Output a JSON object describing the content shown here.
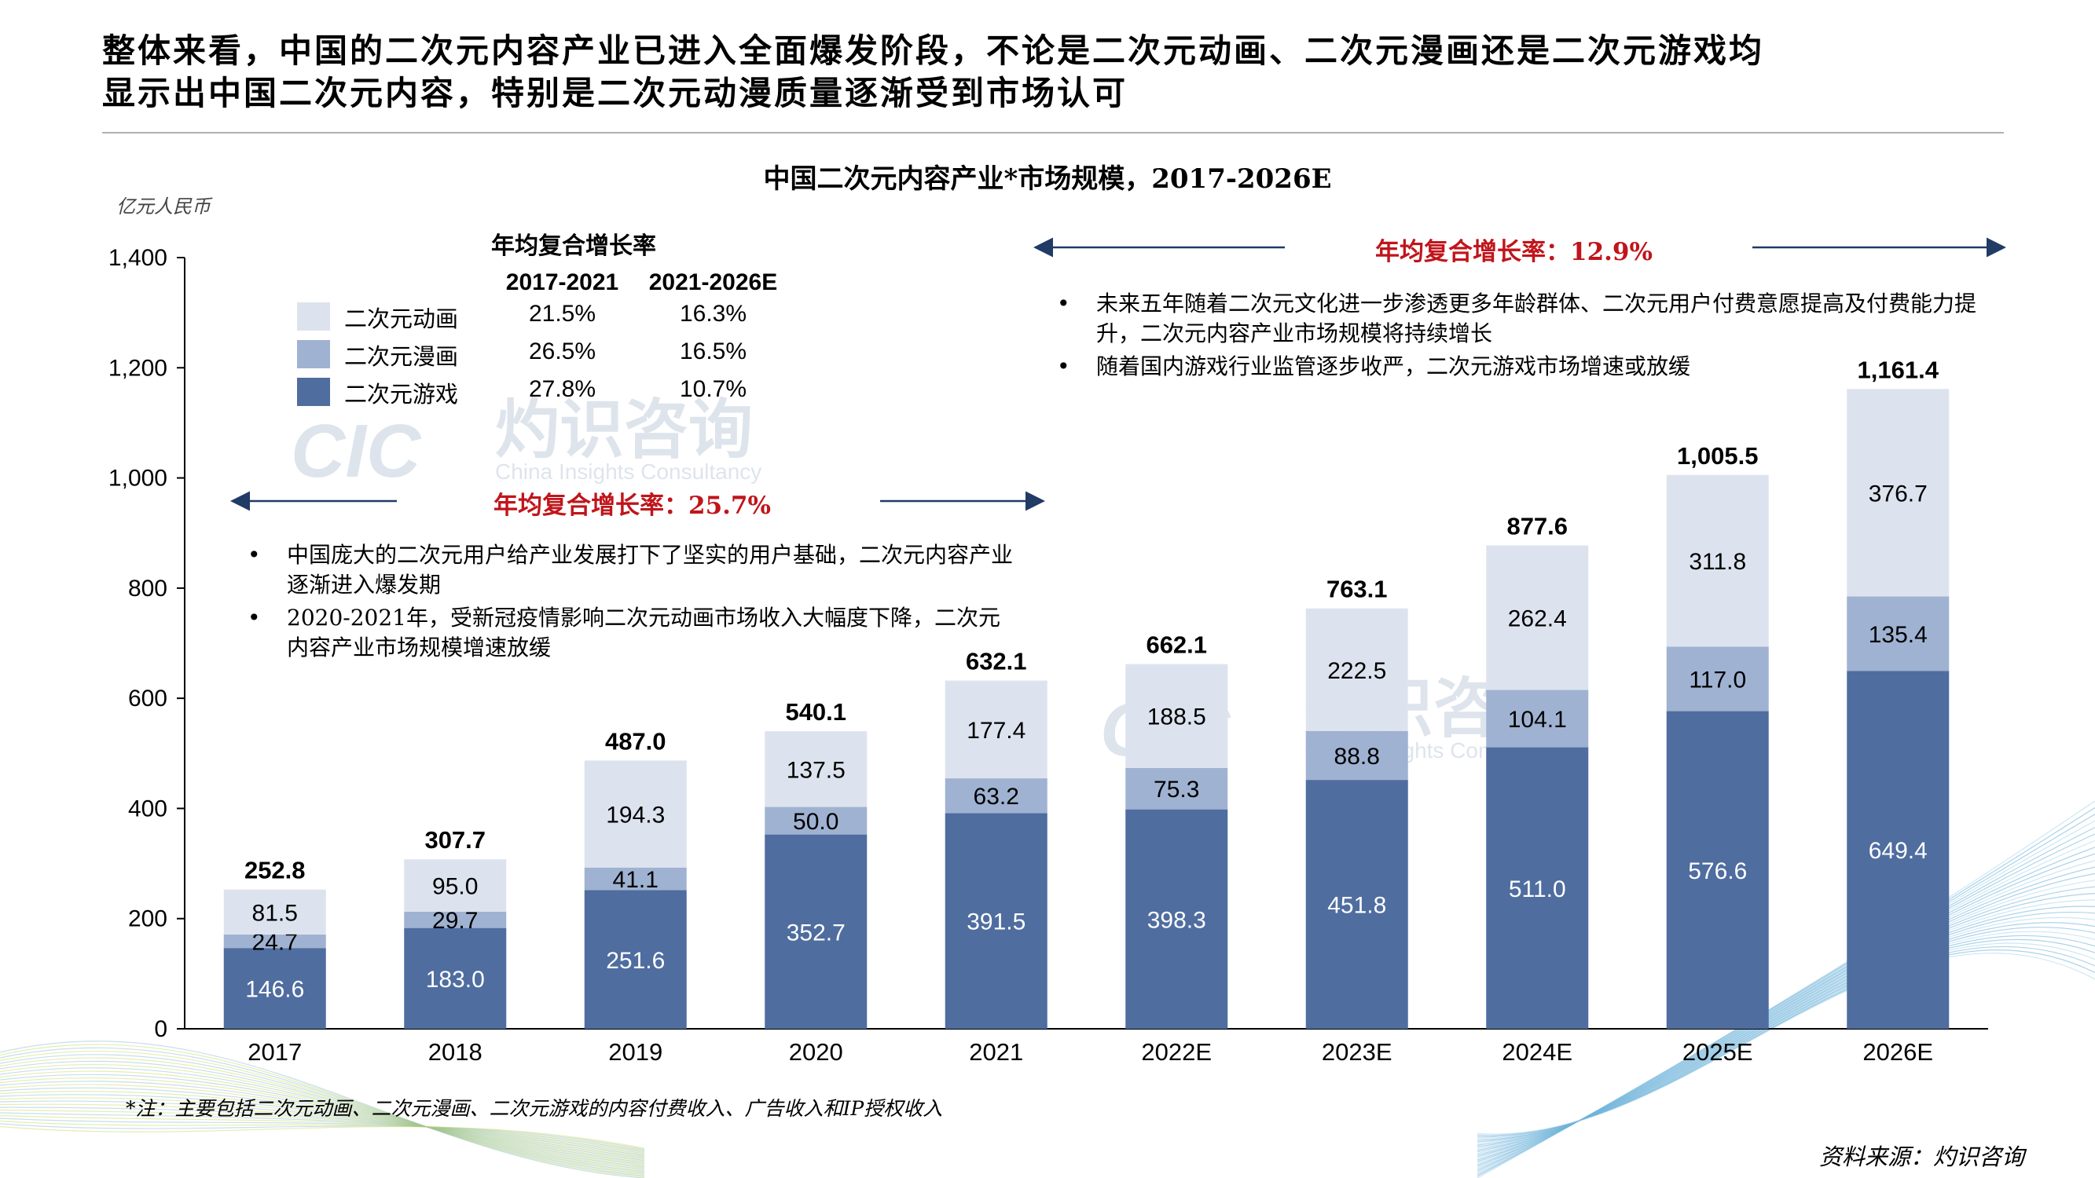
{
  "headline": {
    "line1": "整体来看，中国的二次元内容产业已进入全面爆发阶段，不论是二次元动画、二次元漫画还是二次元游戏均",
    "line2": "显示出中国二次元内容，特别是二次元动漫质量逐渐受到市场认可"
  },
  "unit_label": "亿元人民币",
  "cagr_table": {
    "title": "年均复合增长率",
    "col1": "2017-2021",
    "col2": "2021-2026E",
    "rows": [
      {
        "label": "二次元动画",
        "v1": "21.5%",
        "v2": "16.3%",
        "color": "#dde3ee"
      },
      {
        "label": "二次元漫画",
        "v1": "26.5%",
        "v2": "16.5%",
        "color": "#9fb2d1"
      },
      {
        "label": "二次元游戏",
        "v1": "27.8%",
        "v2": "10.7%",
        "color": "#4f6d9f"
      }
    ]
  },
  "cagr_left": "年均复合增长率：25.7%",
  "cagr_right": "年均复合增长率：12.9%",
  "bullets_left": [
    "中国庞大的二次元用户给产业发展打下了坚实的用户基础，二次元内容产业逐渐进入爆发期",
    "2020-2021年，受新冠疫情影响二次元动画市场收入大幅度下降，二次元内容产业市场规模增速放缓"
  ],
  "bullets_right": [
    "未来五年随着二次元文化进一步渗透更多年龄群体、二次元用户付费意愿提高及付费能力提升，二次元内容产业市场规模将持续增长",
    "随着国内游戏行业监管逐步收严，二次元游戏市场增速或放缓"
  ],
  "bullet_mark": "•",
  "watermark": {
    "logo": "CIC",
    "cn": "灼识咨询",
    "en": "China Insights Consultancy"
  },
  "note": "*注：主要包括二次元动画、二次元漫画、二次元游戏的内容付费收入、广告收入和IP授权收入",
  "source": "资料来源：灼识咨询",
  "chart_data": {
    "type": "bar",
    "stacked": true,
    "title": "中国二次元内容产业*市场规模，2017-2026E",
    "ylabel": "亿元人民币",
    "ylim": [
      0,
      1400
    ],
    "yticks": [
      0,
      200,
      400,
      600,
      800,
      1000,
      1200,
      1400
    ],
    "ytick_labels": [
      "0",
      "200",
      "400",
      "600",
      "800",
      "1,000",
      "1,200",
      "1,400"
    ],
    "categories": [
      "2017",
      "2018",
      "2019",
      "2020",
      "2021",
      "2022E",
      "2023E",
      "2024E",
      "2025E",
      "2026E"
    ],
    "series": [
      {
        "name": "二次元游戏",
        "color": "#4f6d9f",
        "label_color": "#ffffff",
        "values": [
          146.6,
          183.0,
          251.6,
          352.7,
          391.5,
          398.3,
          451.8,
          511.0,
          576.6,
          649.4
        ],
        "labels": [
          "146.6",
          "183.0",
          "251.6",
          "352.7",
          "391.5",
          "398.3",
          "451.8",
          "511.0",
          "576.6",
          "649.4"
        ]
      },
      {
        "name": "二次元漫画",
        "color": "#9fb2d1",
        "label_color": "#000000",
        "values": [
          24.7,
          29.7,
          41.1,
          50.0,
          63.2,
          75.3,
          88.8,
          104.1,
          117.0,
          135.4
        ],
        "labels": [
          "24.7",
          "29.7",
          "41.1",
          "50.0",
          "63.2",
          "75.3",
          "88.8",
          "104.1",
          "117.0",
          "135.4"
        ]
      },
      {
        "name": "二次元动画",
        "color": "#dde3ee",
        "label_color": "#000000",
        "values": [
          81.5,
          95.0,
          194.3,
          137.5,
          177.4,
          188.5,
          222.5,
          262.4,
          311.8,
          376.7
        ],
        "labels": [
          "81.5",
          "95.0",
          "194.3",
          "137.5",
          "177.4",
          "188.5",
          "222.5",
          "262.4",
          "311.8",
          "376.7"
        ]
      }
    ],
    "totals": [
      252.8,
      307.7,
      487.0,
      540.1,
      632.1,
      662.1,
      763.1,
      877.6,
      1005.5,
      1161.4
    ],
    "total_labels": [
      "252.8",
      "307.7",
      "487.0",
      "540.1",
      "632.1",
      "662.1",
      "763.1",
      "877.6",
      "1,005.5",
      "1,161.4"
    ],
    "grid": false,
    "legend": "top-left"
  }
}
